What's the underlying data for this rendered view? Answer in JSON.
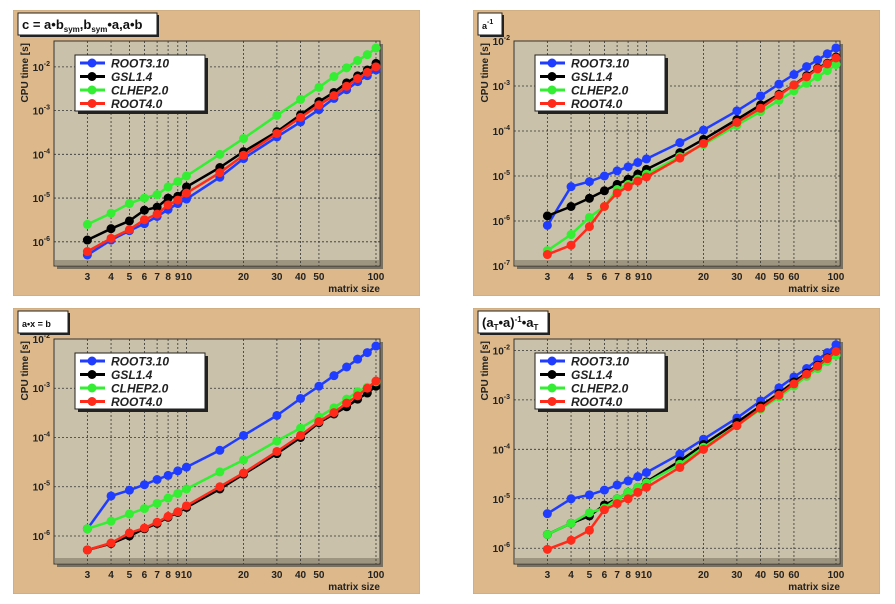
{
  "colors": {
    "canvas": "#dcb88a",
    "plot": "#c9c1a9",
    "ROOT3.10": "#1f3cff",
    "GSL1.4": "#000000",
    "CLHEP2.0": "#33ee33",
    "ROOT4.0": "#ff2a1a"
  },
  "chart_data": [
    {
      "type": "line",
      "title_parts": [
        {
          "t": "c = a•b"
        },
        {
          "t": "sym",
          "sub": true
        },
        {
          "t": ",b"
        },
        {
          "t": "sym",
          "sub": true
        },
        {
          "t": "•a,a•b"
        }
      ],
      "xlabel": "matrix size",
      "ylabel": "CPU time [s]",
      "xscale": "log",
      "yscale": "log",
      "xlim": [
        2,
        105
      ],
      "ylim": [
        2.8e-07,
        0.039
      ],
      "grid": true,
      "legend": "top-left",
      "marker": "circle",
      "x_ticks": [
        3,
        4,
        5,
        6,
        7,
        8,
        9,
        10,
        20,
        30,
        40,
        50,
        100
      ],
      "y_ticks": [
        {
          "v": 1e-06,
          "base": "10",
          "exp": "-6"
        },
        {
          "v": 1e-05,
          "base": "10",
          "exp": "-5"
        },
        {
          "v": 0.0001,
          "base": "10",
          "exp": "-4"
        },
        {
          "v": 0.001,
          "base": "10",
          "exp": "-3"
        },
        {
          "v": 0.01,
          "base": "10",
          "exp": "-2"
        }
      ],
      "x": [
        3,
        4,
        5,
        6,
        7,
        8,
        9,
        10,
        15,
        20,
        30,
        40,
        50,
        60,
        70,
        80,
        90,
        100
      ],
      "series": [
        {
          "name": "ROOT3.10",
          "values": [
            5e-07,
            1.1e-06,
            1.8e-06,
            2.6e-06,
            3.8e-06,
            5.5e-06,
            7.5e-06,
            9.5e-06,
            3e-05,
            8e-05,
            0.00025,
            0.00055,
            0.00105,
            0.0019,
            0.003,
            0.0046,
            0.0063,
            0.0085
          ]
        },
        {
          "name": "GSL1.4",
          "values": [
            1.1e-06,
            2e-06,
            3e-06,
            5.3e-06,
            6.2e-06,
            1e-05,
            1.1e-05,
            1.8e-05,
            5e-05,
            0.000115,
            0.00033,
            0.0008,
            0.0016,
            0.0026,
            0.0043,
            0.0062,
            0.0085,
            0.012
          ]
        },
        {
          "name": "CLHEP2.0",
          "values": [
            2.5e-06,
            4.5e-06,
            7.5e-06,
            1e-05,
            1.2e-05,
            1.8e-05,
            2.4e-05,
            3.2e-05,
            0.0001,
            0.00023,
            0.00078,
            0.0018,
            0.0034,
            0.006,
            0.0095,
            0.014,
            0.019,
            0.027
          ]
        },
        {
          "name": "ROOT4.0",
          "values": [
            6e-07,
            1.2e-06,
            1.9e-06,
            3.2e-06,
            4.3e-06,
            7e-06,
            9e-06,
            1.3e-05,
            3.8e-05,
            9.5e-05,
            0.0003,
            0.0007,
            0.00135,
            0.0022,
            0.0036,
            0.0054,
            0.0075,
            0.01
          ]
        }
      ]
    },
    {
      "type": "line",
      "title_parts": [
        {
          "t": "a"
        },
        {
          "t": "-1",
          "sup": true
        }
      ],
      "xlabel": "matrix size",
      "ylabel": "CPU time [s]",
      "xscale": "log",
      "yscale": "log",
      "xlim": [
        2,
        105
      ],
      "ylim": [
        1e-07,
        0.01
      ],
      "grid": true,
      "legend": "top-left",
      "marker": "circle",
      "x_ticks": [
        3,
        4,
        5,
        6,
        7,
        8,
        9,
        10,
        20,
        30,
        40,
        50,
        60,
        100
      ],
      "y_ticks": [
        {
          "v": 1e-07,
          "base": "10",
          "exp": "-7"
        },
        {
          "v": 1e-06,
          "base": "10",
          "exp": "-6"
        },
        {
          "v": 1e-05,
          "base": "10",
          "exp": "-5"
        },
        {
          "v": 0.0001,
          "base": "10",
          "exp": "-4"
        },
        {
          "v": 0.001,
          "base": "10",
          "exp": "-3"
        },
        {
          "v": 0.01,
          "base": "10",
          "exp": "-2"
        }
      ],
      "x": [
        3,
        4,
        5,
        6,
        7,
        8,
        9,
        10,
        15,
        20,
        30,
        40,
        50,
        60,
        70,
        80,
        90,
        100
      ],
      "series": [
        {
          "name": "ROOT3.10",
          "values": [
            8e-07,
            5.8e-06,
            7.5e-06,
            1e-05,
            1.3e-05,
            1.6e-05,
            2e-05,
            2.4e-05,
            5.5e-05,
            0.000105,
            0.00028,
            0.0006,
            0.0011,
            0.0018,
            0.0027,
            0.0038,
            0.0052,
            0.007
          ]
        },
        {
          "name": "GSL1.4",
          "values": [
            1.3e-06,
            2.1e-06,
            3.2e-06,
            4.7e-06,
            6.5e-06,
            8.5e-06,
            1.1e-05,
            1.4e-05,
            3.3e-05,
            6.5e-05,
            0.00018,
            0.00038,
            0.00065,
            0.00105,
            0.0017,
            0.0025,
            0.0032,
            0.0044
          ]
        },
        {
          "name": "CLHEP2.0",
          "values": [
            2.2e-07,
            5e-07,
            1.2e-06,
            2.1e-06,
            5e-06,
            6.5e-06,
            8.5e-06,
            1.1e-05,
            2.7e-05,
            5e-05,
            0.000135,
            0.00027,
            0.00048,
            0.00078,
            0.00115,
            0.0016,
            0.0022,
            0.003
          ]
        },
        {
          "name": "ROOT4.0",
          "values": [
            1.8e-07,
            2.9e-07,
            7.5e-07,
            2.1e-06,
            4.2e-06,
            5.8e-06,
            7.7e-06,
            9.5e-06,
            2.5e-05,
            5.3e-05,
            0.000155,
            0.00032,
            0.00062,
            0.00105,
            0.0016,
            0.0024,
            0.0031,
            0.0042
          ]
        }
      ]
    },
    {
      "type": "line",
      "title_parts": [
        {
          "t": "a•x = b"
        }
      ],
      "xlabel": "matrix size",
      "ylabel": "CPU time [s]",
      "xscale": "log",
      "yscale": "log",
      "xlim": [
        2,
        105
      ],
      "ylim": [
        2.7e-07,
        0.01
      ],
      "grid": true,
      "legend": "top-left",
      "marker": "circle",
      "x_ticks": [
        3,
        4,
        5,
        6,
        7,
        8,
        9,
        10,
        20,
        30,
        40,
        50,
        100
      ],
      "y_ticks": [
        {
          "v": 1e-06,
          "base": "10",
          "exp": "-6"
        },
        {
          "v": 1e-05,
          "base": "10",
          "exp": "-5"
        },
        {
          "v": 0.0001,
          "base": "10",
          "exp": "-4"
        },
        {
          "v": 0.001,
          "base": "10",
          "exp": "-3"
        },
        {
          "v": 0.01,
          "base": "10",
          "exp": "-2"
        }
      ],
      "x": [
        3,
        4,
        5,
        6,
        7,
        8,
        9,
        10,
        15,
        20,
        30,
        40,
        50,
        60,
        70,
        80,
        90,
        100
      ],
      "series": [
        {
          "name": "ROOT3.10",
          "values": [
            1.4e-06,
            6.5e-06,
            8.5e-06,
            1.1e-05,
            1.4e-05,
            1.7e-05,
            2.1e-05,
            2.5e-05,
            5.5e-05,
            0.00011,
            0.00028,
            0.00062,
            0.0011,
            0.0018,
            0.0027,
            0.0039,
            0.0053,
            0.0072
          ]
        },
        {
          "name": "GSL1.4",
          "values": [
            5.2e-07,
            7e-07,
            1e-06,
            1.4e-06,
            1.8e-06,
            2.4e-06,
            3e-06,
            3.8e-06,
            9e-06,
            1.8e-05,
            4.7e-05,
            0.0001,
            0.0002,
            0.0003,
            0.00042,
            0.0006,
            0.0008,
            0.0011
          ]
        },
        {
          "name": "CLHEP2.0",
          "values": [
            1.4e-06,
            2e-06,
            2.8e-06,
            3.6e-06,
            4.6e-06,
            5.9e-06,
            7.3e-06,
            9e-06,
            2e-05,
            3.5e-05,
            8.5e-05,
            0.000155,
            0.00026,
            0.0004,
            0.0006,
            0.00085,
            0.00105,
            0.00135
          ]
        },
        {
          "name": "ROOT4.0",
          "values": [
            5.2e-07,
            7.2e-07,
            1.15e-06,
            1.45e-06,
            1.9e-06,
            2.5e-06,
            3.1e-06,
            4.1e-06,
            1e-05,
            1.9e-05,
            5.2e-05,
            0.00011,
            0.00021,
            0.00032,
            0.0005,
            0.0007,
            0.001,
            0.0014
          ]
        }
      ]
    },
    {
      "type": "line",
      "title_parts": [
        {
          "t": "(a"
        },
        {
          "t": "T",
          "sub": true
        },
        {
          "t": "•a)"
        },
        {
          "t": "-1",
          "sup": true
        },
        {
          "t": "•a"
        },
        {
          "t": "T",
          "sub": true
        }
      ],
      "xlabel": "matrix size",
      "ylabel": "CPU time [s]",
      "xscale": "log",
      "yscale": "log",
      "xlim": [
        2,
        105
      ],
      "ylim": [
        4.8e-07,
        0.017
      ],
      "grid": true,
      "legend": "top-left",
      "marker": "circle",
      "x_ticks": [
        3,
        4,
        5,
        6,
        7,
        8,
        9,
        10,
        20,
        30,
        40,
        50,
        60,
        100
      ],
      "y_ticks": [
        {
          "v": 1e-06,
          "base": "10",
          "exp": "-6"
        },
        {
          "v": 1e-05,
          "base": "10",
          "exp": "-5"
        },
        {
          "v": 0.0001,
          "base": "10",
          "exp": "-4"
        },
        {
          "v": 0.001,
          "base": "10",
          "exp": "-3"
        },
        {
          "v": 0.01,
          "base": "10",
          "exp": "-2"
        }
      ],
      "x": [
        3,
        4,
        5,
        6,
        7,
        8,
        9,
        10,
        15,
        20,
        30,
        40,
        50,
        60,
        70,
        80,
        90,
        100
      ],
      "series": [
        {
          "name": "ROOT3.10",
          "values": [
            5e-06,
            1e-05,
            1.2e-05,
            1.5e-05,
            1.9e-05,
            2.3e-05,
            2.8e-05,
            3.4e-05,
            8e-05,
            0.00016,
            0.00043,
            0.00095,
            0.00175,
            0.0029,
            0.0043,
            0.0065,
            0.009,
            0.013
          ]
        },
        {
          "name": "GSL1.4",
          "values": [
            1.9e-06,
            3.2e-06,
            4.5e-06,
            7.5e-06,
            1e-05,
            1.35e-05,
            1.7e-05,
            2.2e-05,
            5.8e-05,
            0.000125,
            0.00035,
            0.00075,
            0.00135,
            0.0023,
            0.0035,
            0.005,
            0.007,
            0.0095
          ]
        },
        {
          "name": "CLHEP2.0",
          "values": [
            1.9e-06,
            3.2e-06,
            5.2e-06,
            6.5e-06,
            1e-05,
            1.35e-05,
            1.7e-05,
            2.1e-05,
            5e-05,
            0.00011,
            0.0003,
            0.00065,
            0.00115,
            0.0019,
            0.003,
            0.0043,
            0.006,
            0.008
          ]
        },
        {
          "name": "ROOT4.0",
          "values": [
            9.5e-07,
            1.45e-06,
            2.3e-06,
            6e-06,
            8e-06,
            1e-05,
            1.35e-05,
            1.7e-05,
            4.3e-05,
            0.0001,
            0.0003,
            0.00068,
            0.00125,
            0.0021,
            0.0033,
            0.0048,
            0.0068,
            0.0095
          ]
        }
      ]
    }
  ]
}
